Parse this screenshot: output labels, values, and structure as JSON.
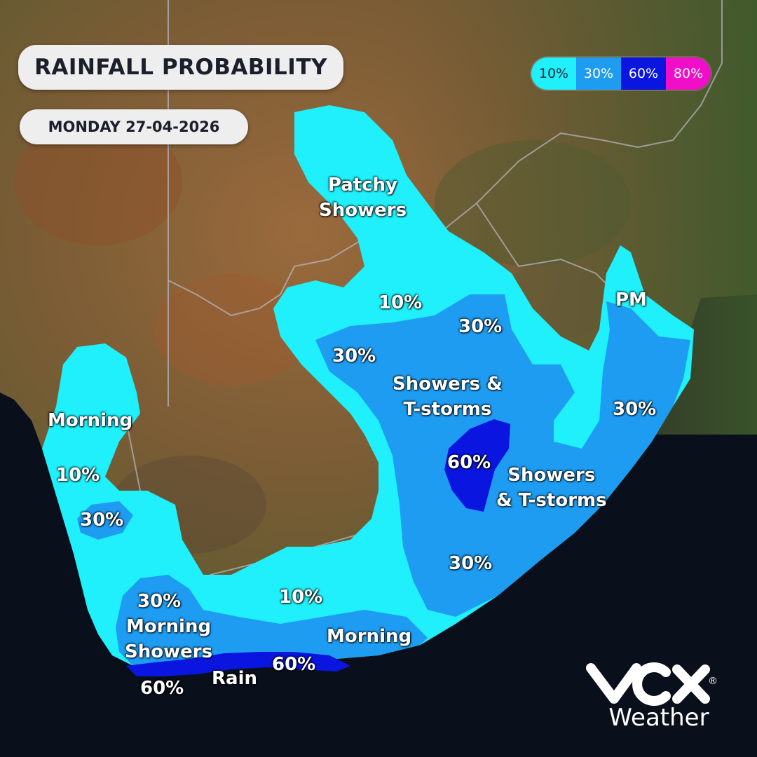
{
  "header": {
    "title": "RAINFALL PROBABILITY",
    "date": "MONDAY 27-04-2026"
  },
  "legend": {
    "items": [
      {
        "label": "10%",
        "color": "#1ff0fb"
      },
      {
        "label": "30%",
        "color": "#1e9cf2"
      },
      {
        "label": "60%",
        "color": "#0a16e0"
      },
      {
        "label": "80%",
        "color": "#f00ec8"
      }
    ]
  },
  "map": {
    "zone_colors": {
      "p10": "#1ff0fb",
      "p30": "#1e9cf2",
      "p60": "#0a16e0"
    },
    "ocean_color": "#0a0f1c",
    "labels": {
      "patchy_showers": "Patchy\nShowers",
      "p10_north": "10%",
      "p30_ne": "30%",
      "p30_center": "30%",
      "showers_tstorms_center": "Showers &\nT-storms",
      "pm": "PM",
      "p30_east": "30%",
      "p60_center": "60%",
      "showers_tstorms_east": "Showers\n& T-storms",
      "morning_west": "Morning",
      "p10_west": "10%",
      "p30_west": "30%",
      "p30_south": "30%",
      "p30_southwest": "30%",
      "morning_showers": "Morning\nShowers",
      "p10_south": "10%",
      "morning_south": "Morning",
      "p60_southwest": "60%",
      "rain": "Rain",
      "p60_south": "60%"
    }
  },
  "brand": {
    "logo": "vox-logo",
    "sub": "Weather",
    "registered": "®"
  }
}
